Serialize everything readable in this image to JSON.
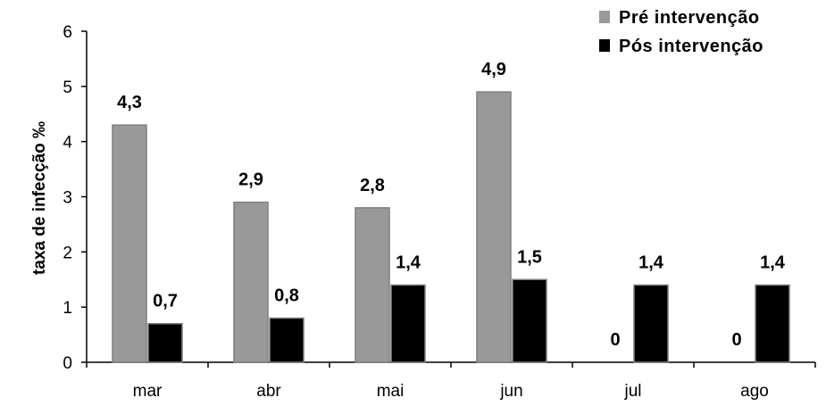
{
  "chart_data": {
    "type": "bar",
    "categories": [
      "mar",
      "abr",
      "mai",
      "jun",
      "jul",
      "ago"
    ],
    "series": [
      {
        "name": "Pré intervenção",
        "values": [
          4.3,
          2.9,
          2.8,
          4.9,
          0,
          0
        ],
        "labels": [
          "4,3",
          "2,9",
          "2,8",
          "4,9",
          "0",
          "0"
        ],
        "color": "#999999"
      },
      {
        "name": "Pós intervenção",
        "values": [
          0.7,
          0.8,
          1.4,
          1.5,
          1.4,
          1.4
        ],
        "labels": [
          "0,7",
          "0,8",
          "1,4",
          "1,5",
          "1,4",
          "1,4"
        ],
        "color": "#000000"
      }
    ],
    "title": "",
    "xlabel": "",
    "ylabel": "taxa de infecção ‰",
    "ylim": [
      0,
      6
    ],
    "yticks": [
      "0",
      "1",
      "2",
      "3",
      "4",
      "5",
      "6"
    ],
    "grid": false,
    "legend_position": "top-right"
  }
}
